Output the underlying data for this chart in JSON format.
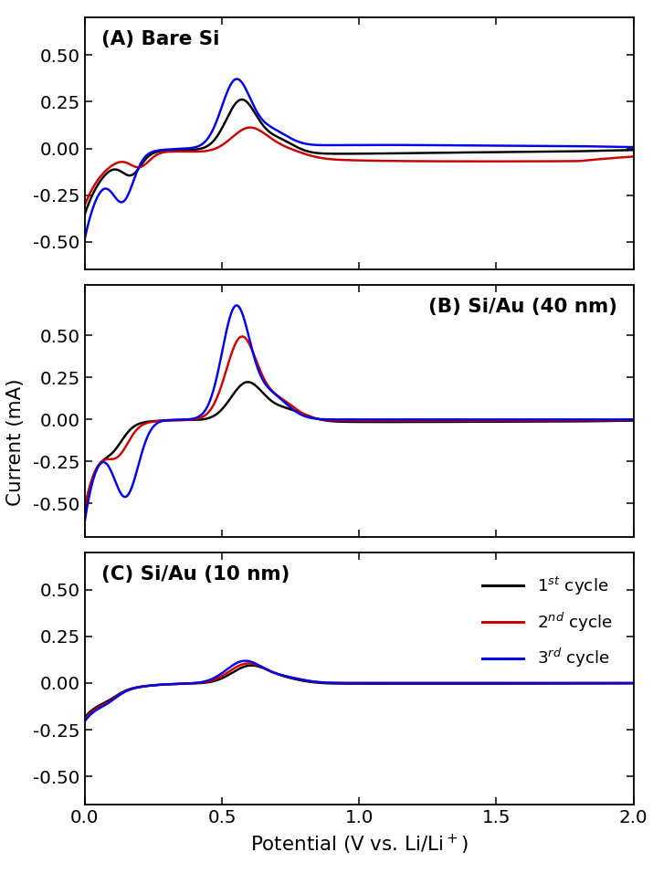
{
  "panels": [
    {
      "label": "(A) Bare Si",
      "label_pos": "left",
      "ylim": [
        -0.65,
        0.7
      ],
      "yticks": [
        -0.5,
        -0.25,
        0.0,
        0.25,
        0.5
      ]
    },
    {
      "label": "(B) Si/Au (40 nm)",
      "label_pos": "right",
      "ylim": [
        -0.7,
        0.8
      ],
      "yticks": [
        -0.5,
        -0.25,
        0.0,
        0.25,
        0.5
      ]
    },
    {
      "label": "(C) Si/Au (10 nm)",
      "label_pos": "left",
      "ylim": [
        -0.65,
        0.7
      ],
      "yticks": [
        -0.5,
        -0.25,
        0.0,
        0.25,
        0.5
      ]
    }
  ],
  "xlim": [
    0.0,
    2.0
  ],
  "xticks": [
    0.0,
    0.5,
    1.0,
    1.5,
    2.0
  ],
  "xticklabels": [
    "0.0",
    "0.5",
    "1.0",
    "1.5",
    "2.0"
  ],
  "xlabel": "Potential (V vs. Li/Li$^+$)",
  "ylabel": "Current (mA)",
  "legend": [
    "1$^{st}$ cycle",
    "2$^{nd}$ cycle",
    "3$^{rd}$ cycle"
  ],
  "legend_colors": [
    "#000000",
    "#cc0000",
    "#0000ee"
  ],
  "background": "#ffffff",
  "linewidth": 1.6
}
